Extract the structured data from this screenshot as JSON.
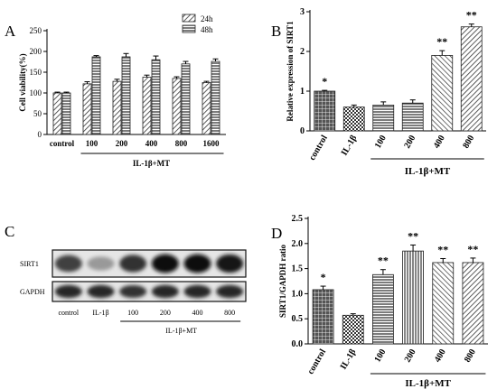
{
  "panels": {
    "A": {
      "letter": "A"
    },
    "B": {
      "letter": "B"
    },
    "C": {
      "letter": "C"
    },
    "D": {
      "letter": "D"
    }
  },
  "chart_data": [
    {
      "id": "A",
      "type": "bar",
      "ylabel": "Cell viability(%)",
      "ylim": [
        0,
        250
      ],
      "yticks": [
        0,
        50,
        100,
        150,
        200,
        250
      ],
      "categories": [
        "control",
        "100",
        "200",
        "400",
        "800",
        "1600"
      ],
      "series": [
        {
          "name": "24h",
          "values": [
            100,
            122,
            128,
            138,
            135,
            125
          ],
          "errors": [
            2,
            5,
            5,
            5,
            4,
            3
          ]
        },
        {
          "name": "48h",
          "values": [
            100,
            187,
            187,
            180,
            170,
            176
          ],
          "errors": [
            2,
            3,
            8,
            9,
            6,
            6
          ]
        }
      ],
      "group_label": "IL-1β+MT",
      "legend_position": "top-right",
      "grid": false
    },
    {
      "id": "B",
      "type": "bar",
      "ylabel": "Relative expression of SIRT1",
      "ylim": [
        0,
        3
      ],
      "yticks": [
        0,
        1,
        2,
        3
      ],
      "categories": [
        "control",
        "IL-1β",
        "100",
        "200",
        "400",
        "800"
      ],
      "values": [
        1.0,
        0.6,
        0.65,
        0.7,
        1.9,
        2.62
      ],
      "errors": [
        0.02,
        0.05,
        0.08,
        0.08,
        0.12,
        0.07
      ],
      "annotations": [
        "*",
        "",
        "",
        "",
        "**",
        "**"
      ],
      "group_label": "IL-1β+MT",
      "grid": false
    },
    {
      "id": "D",
      "type": "bar",
      "ylabel": "SIRT1/GAPDH ratio",
      "ylim": [
        0,
        2.5
      ],
      "yticks": [
        0.0,
        0.5,
        1.0,
        1.5,
        2.0,
        2.5
      ],
      "categories": [
        "control",
        "IL-1β",
        "100",
        "200",
        "400",
        "800"
      ],
      "values": [
        1.08,
        0.57,
        1.38,
        1.85,
        1.62,
        1.62
      ],
      "errors": [
        0.07,
        0.03,
        0.1,
        0.12,
        0.08,
        0.09
      ],
      "annotations": [
        "*",
        "",
        "**",
        "**",
        "**",
        "**"
      ],
      "group_label": "IL-1β+MT",
      "grid": false
    }
  ],
  "blot": {
    "rows": [
      "SIRT1",
      "GAPDH"
    ],
    "lanes": [
      "control",
      "IL-1β",
      "100",
      "200",
      "400",
      "800"
    ],
    "sirt1_intensity": [
      0.75,
      0.4,
      0.8,
      0.95,
      0.95,
      0.9
    ],
    "gapdh_intensity": [
      0.85,
      0.85,
      0.8,
      0.85,
      0.85,
      0.85
    ],
    "group_label": "IL-1β+MT"
  }
}
